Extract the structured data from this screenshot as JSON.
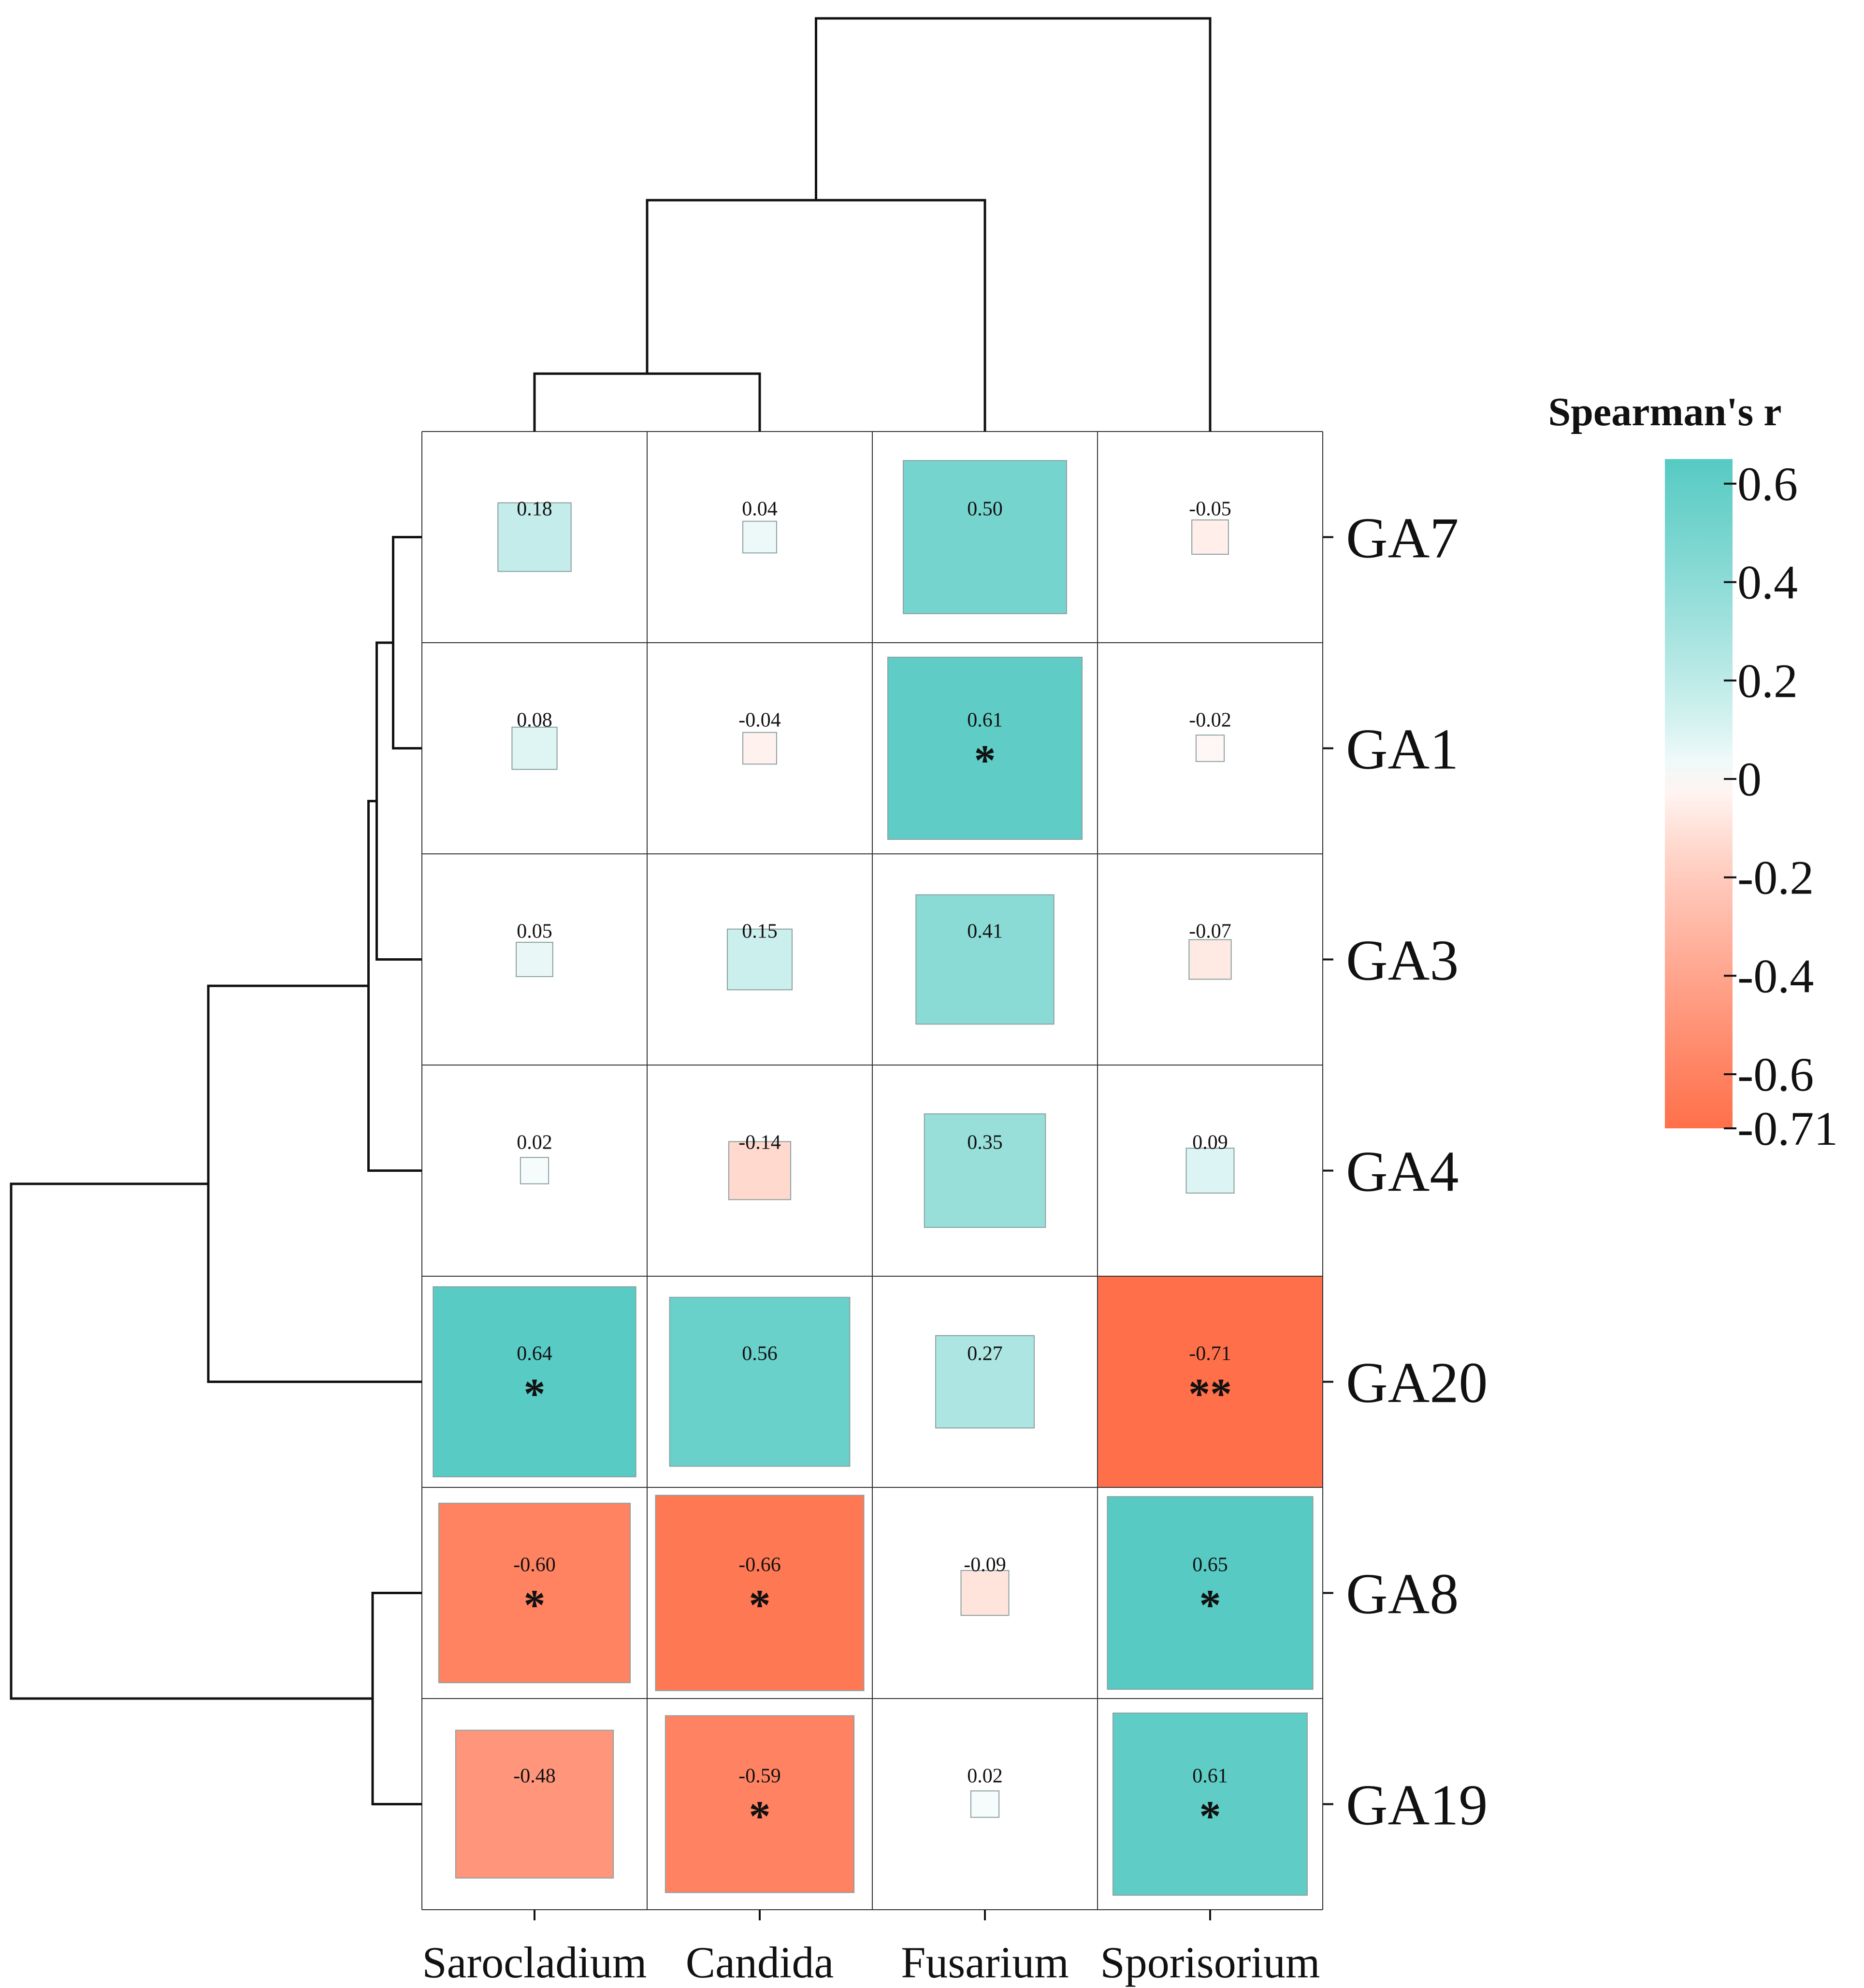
{
  "chart_data": {
    "type": "heatmap",
    "subtype": "correlation-square-size",
    "rows": [
      "GA7",
      "GA1",
      "GA3",
      "GA4",
      "GA20",
      "GA8",
      "GA19"
    ],
    "columns": [
      "Sarocladium",
      "Candida",
      "Fusarium",
      "Sporisorium"
    ],
    "values": [
      [
        0.18,
        0.04,
        0.5,
        -0.05
      ],
      [
        0.08,
        -0.04,
        0.61,
        -0.02
      ],
      [
        0.05,
        0.15,
        0.41,
        -0.07
      ],
      [
        0.02,
        -0.14,
        0.35,
        0.09
      ],
      [
        0.64,
        0.56,
        0.27,
        -0.71
      ],
      [
        -0.6,
        -0.66,
        -0.09,
        0.65
      ],
      [
        -0.48,
        -0.59,
        0.02,
        0.61
      ]
    ],
    "labels": [
      [
        "0.18",
        "0.04",
        "0.50",
        "-0.05"
      ],
      [
        "0.08",
        "-0.04",
        "0.61",
        "-0.02"
      ],
      [
        "0.05",
        "0.15",
        "0.41",
        "-0.07"
      ],
      [
        "0.02",
        "-0.14",
        "0.35",
        "0.09"
      ],
      [
        "0.64",
        "0.56",
        "0.27",
        "-0.71"
      ],
      [
        "-0.60",
        "-0.66",
        "-0.09",
        "0.65"
      ],
      [
        "-0.48",
        "-0.59",
        "0.02",
        "0.61"
      ]
    ],
    "significance": [
      [
        "",
        "",
        "",
        ""
      ],
      [
        "",
        "",
        "*",
        ""
      ],
      [
        "",
        "",
        "",
        ""
      ],
      [
        "",
        "",
        "",
        ""
      ],
      [
        "*",
        "",
        "",
        "**"
      ],
      [
        "*",
        "*",
        "",
        "*"
      ],
      [
        "",
        "*",
        "",
        "*"
      ]
    ],
    "legend": {
      "title": "Spearman's r",
      "range": [
        -0.71,
        0.65
      ],
      "ticks": [
        0.6,
        0.4,
        0.2,
        0,
        -0.2,
        -0.4,
        -0.6,
        -0.71
      ],
      "tick_labels": [
        "0.6",
        "0.4",
        "0.2",
        "0",
        "-0.2",
        "-0.4",
        "-0.6",
        "-0.71"
      ],
      "placement": "right"
    },
    "colors": {
      "positive": "#48C6BE",
      "neutral": "#FFFFFF",
      "negative": "#FF6E48",
      "grid": "#333333",
      "dendrogram": "#111111"
    },
    "column_dendrogram": {
      "leaf_order": [
        "Sarocladium",
        "Candida",
        "Fusarium",
        "Sporisorium"
      ],
      "merges": [
        [
          0,
          1
        ],
        [
          "m0",
          2
        ],
        [
          "m1",
          3
        ]
      ],
      "relative_heights": [
        0.14,
        0.56,
        1.0
      ]
    },
    "row_dendrogram": {
      "leaf_order": [
        "GA7",
        "GA1",
        "GA3",
        "GA4",
        "GA20",
        "GA8",
        "GA19"
      ],
      "merges": [
        [
          0,
          1
        ],
        [
          "m0",
          2
        ],
        [
          "m1",
          3
        ],
        [
          "m2",
          4
        ],
        [
          5,
          6
        ],
        [
          "m3",
          "m4"
        ]
      ],
      "relative_heights": [
        0.07,
        0.11,
        0.13,
        0.52,
        0.12,
        1.0
      ]
    }
  }
}
